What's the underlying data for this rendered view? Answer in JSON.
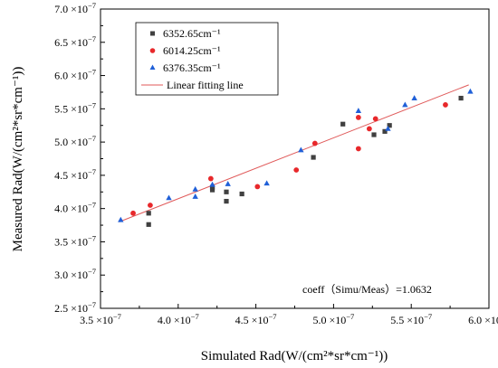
{
  "chart_data": {
    "type": "scatter",
    "title": "",
    "xlabel": "Simulated Rad(W/(cm²*sr*cm⁻¹))",
    "ylabel": "Measured Rad(W/(cm²*sr*cm⁻¹))",
    "xlim": [
      3.5e-07,
      6e-07
    ],
    "ylim": [
      2.5e-07,
      7e-07
    ],
    "x_ticks": [
      {
        "value": 3.5e-07,
        "mantissa": "3.5"
      },
      {
        "value": 4e-07,
        "mantissa": "4.0"
      },
      {
        "value": 4.5e-07,
        "mantissa": "4.5"
      },
      {
        "value": 5e-07,
        "mantissa": "5.0"
      },
      {
        "value": 5.5e-07,
        "mantissa": "5.5"
      },
      {
        "value": 6e-07,
        "mantissa": "6.0"
      }
    ],
    "y_ticks": [
      {
        "value": 2.5e-07,
        "mantissa": "2.5"
      },
      {
        "value": 3e-07,
        "mantissa": "3.0"
      },
      {
        "value": 3.5e-07,
        "mantissa": "3.5"
      },
      {
        "value": 4e-07,
        "mantissa": "4.0"
      },
      {
        "value": 4.5e-07,
        "mantissa": "4.5"
      },
      {
        "value": 5e-07,
        "mantissa": "5.0"
      },
      {
        "value": 5.5e-07,
        "mantissa": "5.5"
      },
      {
        "value": 6e-07,
        "mantissa": "6.0"
      },
      {
        "value": 6.5e-07,
        "mantissa": "6.5"
      },
      {
        "value": 7e-07,
        "mantissa": "7.0"
      }
    ],
    "tick_multiplier": "×10",
    "tick_exponent": "−7",
    "grid": false,
    "legend_position": "top-left",
    "series": [
      {
        "name": "6352.65cm⁻¹",
        "marker": "square",
        "color": "#404040",
        "points": [
          [
            3.81e-07,
            3.76e-07
          ],
          [
            3.81e-07,
            3.93e-07
          ],
          [
            4.22e-07,
            4.28e-07
          ],
          [
            4.22e-07,
            4.32e-07
          ],
          [
            4.31e-07,
            4.25e-07
          ],
          [
            4.31e-07,
            4.11e-07
          ],
          [
            4.41e-07,
            4.22e-07
          ],
          [
            4.87e-07,
            4.77e-07
          ],
          [
            5.06e-07,
            5.27e-07
          ],
          [
            5.26e-07,
            5.11e-07
          ],
          [
            5.33e-07,
            5.16e-07
          ],
          [
            5.36e-07,
            5.25e-07
          ],
          [
            5.82e-07,
            5.66e-07
          ]
        ]
      },
      {
        "name": "6014.25cm⁻¹",
        "marker": "circle",
        "color": "#e8282b",
        "points": [
          [
            3.71e-07,
            3.93e-07
          ],
          [
            3.82e-07,
            4.05e-07
          ],
          [
            4.21e-07,
            4.45e-07
          ],
          [
            4.51e-07,
            4.33e-07
          ],
          [
            4.76e-07,
            4.58e-07
          ],
          [
            4.88e-07,
            4.98e-07
          ],
          [
            5.16e-07,
            4.9e-07
          ],
          [
            5.16e-07,
            5.37e-07
          ],
          [
            5.23e-07,
            5.2e-07
          ],
          [
            5.27e-07,
            5.35e-07
          ],
          [
            5.72e-07,
            5.56e-07
          ]
        ]
      },
      {
        "name": "6376.35cm⁻¹",
        "marker": "triangle",
        "color": "#2060d8",
        "points": [
          [
            3.63e-07,
            3.83e-07
          ],
          [
            3.94e-07,
            4.16e-07
          ],
          [
            4.11e-07,
            4.18e-07
          ],
          [
            4.11e-07,
            4.29e-07
          ],
          [
            4.22e-07,
            4.36e-07
          ],
          [
            4.32e-07,
            4.37e-07
          ],
          [
            4.57e-07,
            4.38e-07
          ],
          [
            4.79e-07,
            4.88e-07
          ],
          [
            5.16e-07,
            5.47e-07
          ],
          [
            5.35e-07,
            5.2e-07
          ],
          [
            5.46e-07,
            5.56e-07
          ],
          [
            5.52e-07,
            5.66e-07
          ],
          [
            5.88e-07,
            5.76e-07
          ]
        ]
      }
    ],
    "fit_line": {
      "name": "Linear fitting line",
      "color": "#e05a5a",
      "points": [
        [
          3.62e-07,
          3.8e-07
        ],
        [
          5.87e-07,
          5.86e-07
        ]
      ]
    },
    "annotation": "coeff（Simu/Meas）=1.0632"
  }
}
